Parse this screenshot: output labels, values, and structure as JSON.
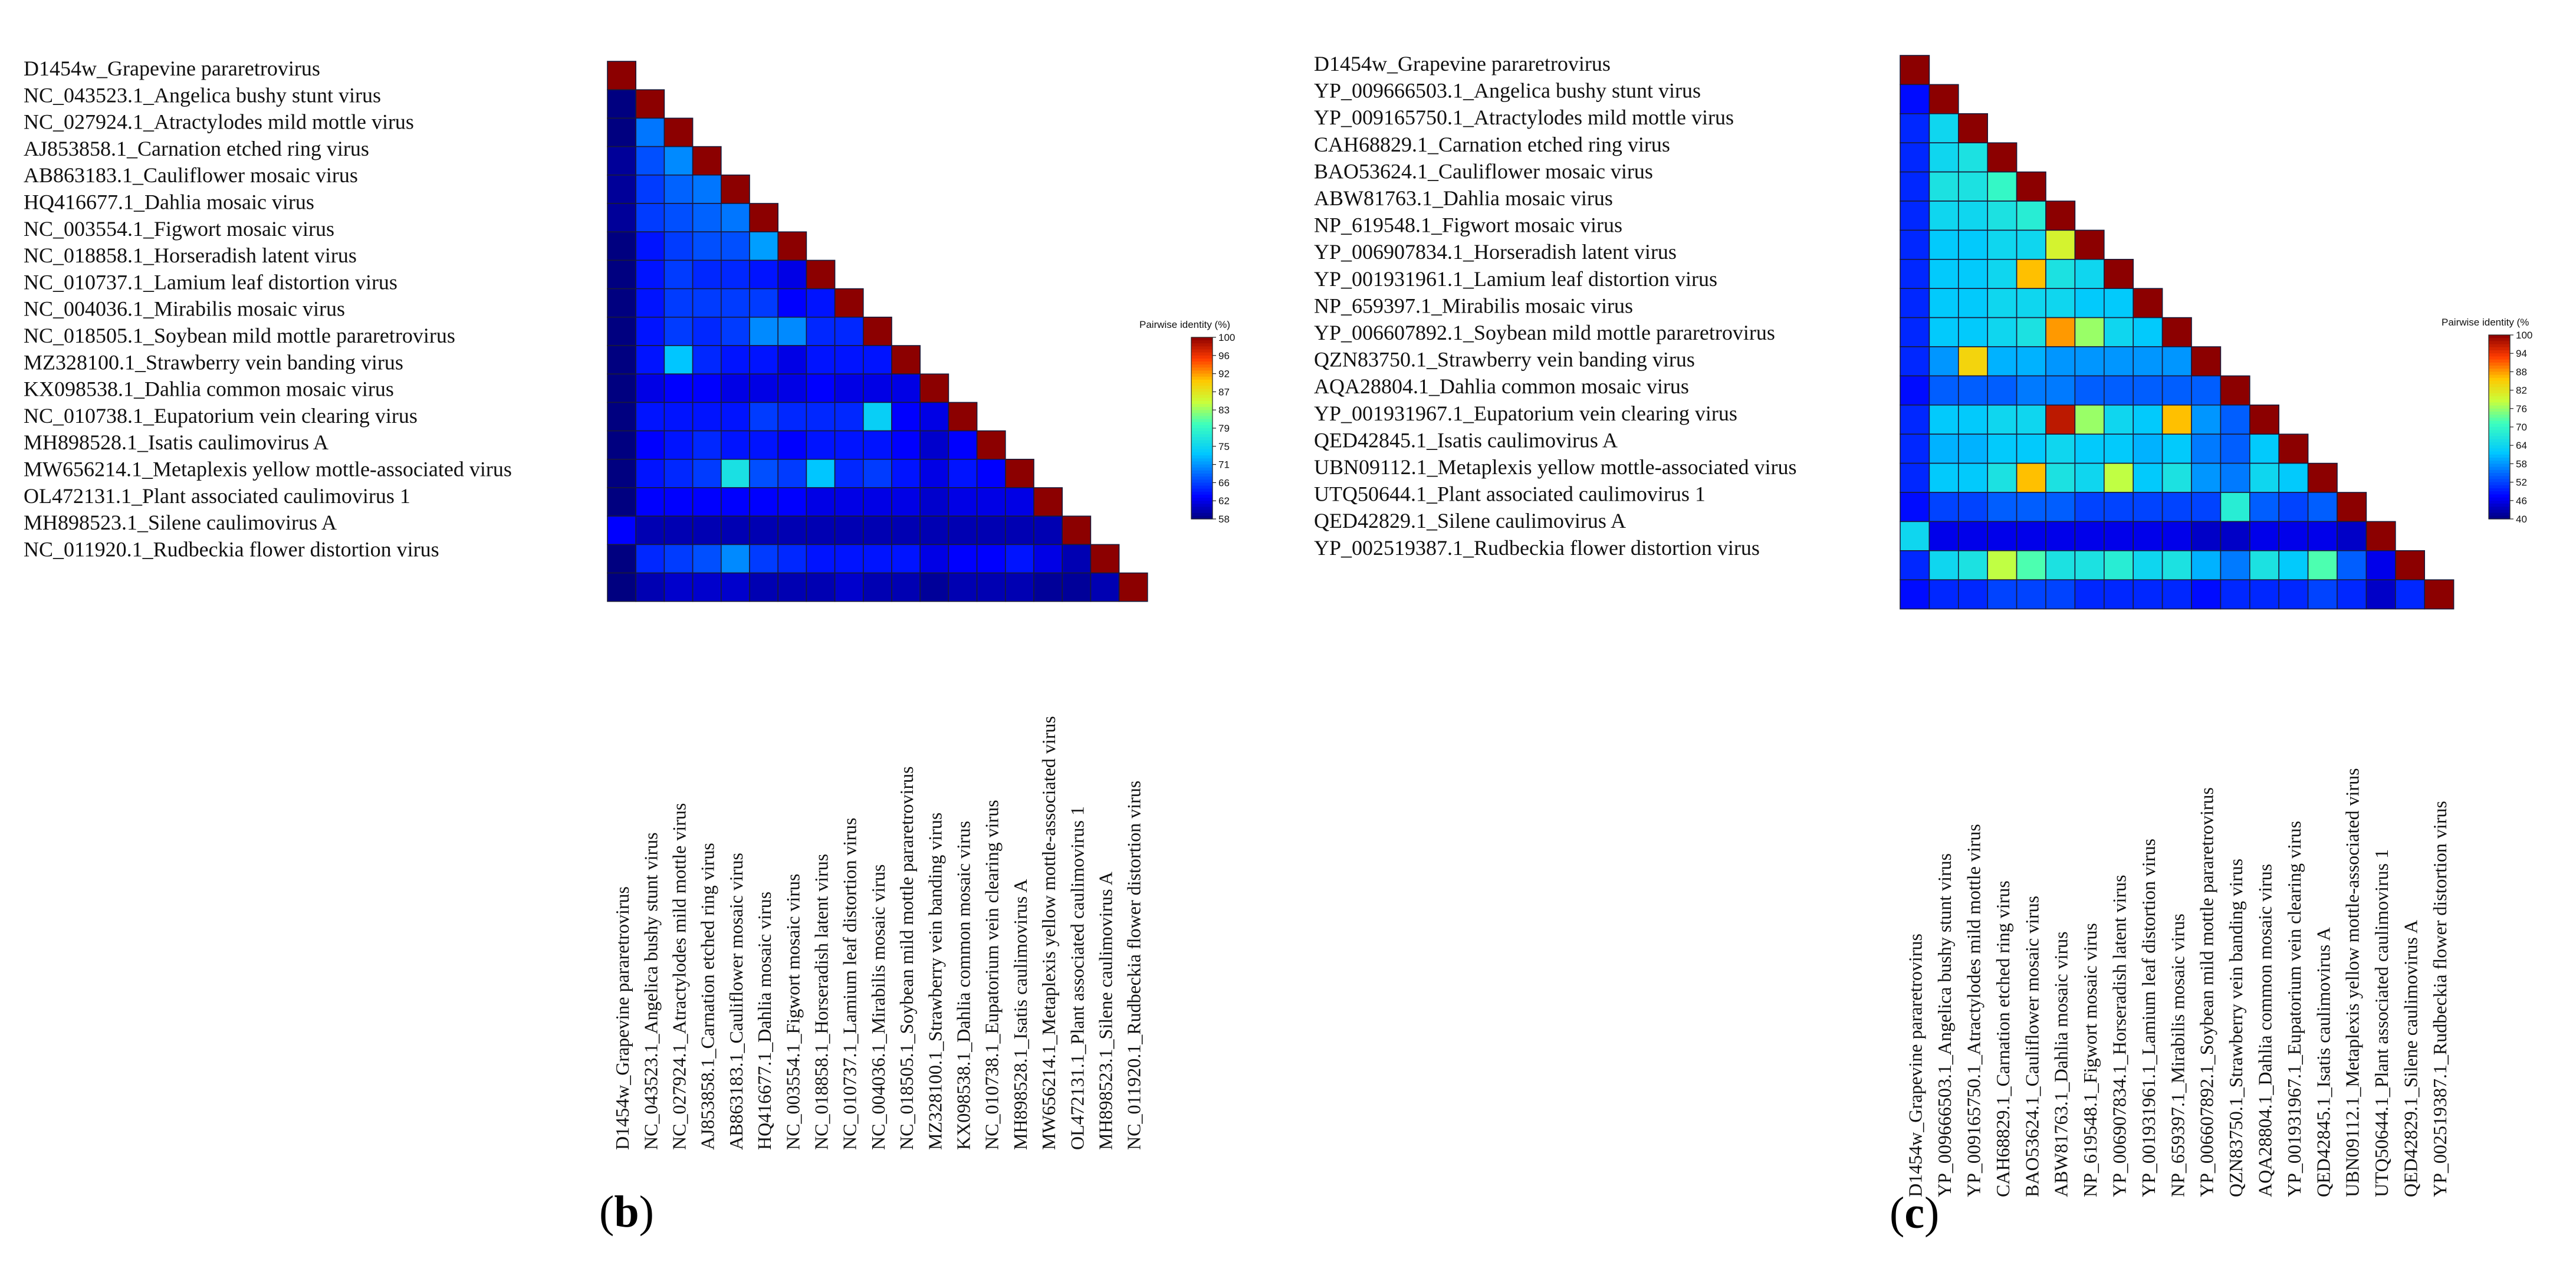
{
  "chart_data": [
    {
      "type": "heatmap",
      "panel_label": {
        "open": "(",
        "letter": "b",
        "close": ")"
      },
      "legend": {
        "title": "Pairwise identity (%)",
        "ticks": [
          100,
          96,
          92,
          87,
          83,
          79,
          75,
          71,
          66,
          62,
          58
        ]
      },
      "value_range": [
        58,
        100
      ],
      "row_labels": [
        "D1454w_Grapevine pararetrovirus",
        "NC_043523.1_Angelica bushy stunt virus",
        "NC_027924.1_Atractylodes mild mottle virus",
        "AJ853858.1_Carnation etched ring virus",
        "AB863183.1_Cauliflower mosaic virus",
        "HQ416677.1_Dahlia mosaic virus",
        "NC_003554.1_Figwort mosaic virus",
        "NC_018858.1_Horseradish latent virus",
        "NC_010737.1_Lamium leaf distortion virus",
        "NC_004036.1_Mirabilis mosaic virus",
        "NC_018505.1_Soybean mild mottle pararetrovirus",
        "MZ328100.1_Strawberry vein banding virus",
        "KX098538.1_Dahlia common mosaic virus",
        "NC_010738.1_Eupatorium vein clearing virus",
        "MH898528.1_Isatis caulimovirus A",
        "MW656214.1_Metaplexis yellow  mottle-associated virus",
        "OL472131.1_Plant associated caulimovirus 1",
        "MH898523.1_Silene caulimovirus A",
        "NC_011920.1_Rudbeckia flower distortion virus"
      ],
      "col_labels": [
        "D1454w_Grapevine pararetrovirus",
        "NC_043523.1_Angelica bushy stunt virus",
        "NC_027924.1_Atractylodes mild mottle virus",
        "AJ853858.1_Carnation etched ring virus",
        "AB863183.1_Cauliflower mosaic virus",
        "HQ416677.1_Dahlia mosaic virus",
        "NC_003554.1_Figwort mosaic virus",
        "NC_018858.1_Horseradish latent virus",
        "NC_010737.1_Lamium leaf distortion virus",
        "NC_004036.1_Mirabilis mosaic virus",
        "NC_018505.1_Soybean mild mottle pararetrovirus",
        "MZ328100.1_Strawberry vein banding virus",
        "KX098538.1_Dahlia common mosaic virus",
        "NC_010738.1_Eupatorium vein clearing virus",
        "MH898528.1_Isatis caulimovirus A",
        "MW656214.1_Metaplexis yellow  mottle-associated virus",
        "OL472131.1_Plant associated caulimovirus 1",
        "MH898523.1_Silene caulimovirus A",
        "NC_011920.1_Rudbeckia flower distortion virus"
      ],
      "values": [
        [
          100
        ],
        [
          58,
          100
        ],
        [
          58,
          69,
          100
        ],
        [
          59,
          67,
          70,
          100
        ],
        [
          59,
          66,
          68,
          69,
          100
        ],
        [
          59,
          66,
          67,
          68,
          69,
          100
        ],
        [
          58,
          64,
          66,
          67,
          67,
          71,
          100
        ],
        [
          58,
          64,
          66,
          65,
          65,
          64,
          62,
          100
        ],
        [
          58,
          64,
          66,
          66,
          66,
          66,
          63,
          64,
          100
        ],
        [
          58,
          64,
          66,
          65,
          66,
          70,
          70,
          65,
          65,
          100
        ],
        [
          58,
          64,
          73,
          65,
          64,
          64,
          62,
          64,
          64,
          64,
          100
        ],
        [
          58,
          62,
          63,
          63,
          62,
          62,
          62,
          63,
          62,
          62,
          62,
          100
        ],
        [
          58,
          64,
          64,
          64,
          64,
          66,
          65,
          65,
          65,
          74,
          63,
          62,
          100
        ],
        [
          58,
          63,
          64,
          65,
          64,
          64,
          63,
          64,
          64,
          64,
          63,
          61,
          63,
          100
        ],
        [
          58,
          64,
          65,
          66,
          76,
          67,
          66,
          73,
          65,
          66,
          64,
          62,
          64,
          63,
          100
        ],
        [
          58,
          63,
          63,
          63,
          63,
          63,
          63,
          62,
          62,
          62,
          62,
          61,
          62,
          62,
          62,
          100
        ],
        [
          63,
          60,
          60,
          60,
          60,
          60,
          60,
          60,
          60,
          60,
          60,
          60,
          60,
          60,
          60,
          60,
          100
        ],
        [
          58,
          65,
          66,
          67,
          70,
          66,
          65,
          64,
          64,
          64,
          64,
          62,
          63,
          63,
          64,
          62,
          60,
          100
        ],
        [
          58,
          60,
          61,
          61,
          61,
          60,
          60,
          60,
          61,
          60,
          60,
          59,
          60,
          60,
          60,
          59,
          59,
          60,
          100
        ]
      ]
    },
    {
      "type": "heatmap",
      "panel_label": {
        "open": "(",
        "letter": "c",
        "close": ")"
      },
      "legend": {
        "title": "Pairwise identity (%",
        "ticks": [
          100,
          94,
          88,
          82,
          76,
          70,
          64,
          58,
          52,
          46,
          40
        ]
      },
      "value_range": [
        40,
        100
      ],
      "row_labels": [
        "D1454w_Grapevine pararetrovirus",
        "YP_009666503.1_Angelica bushy stunt virus",
        "YP_009165750.1_Atractylodes mild mottle virus",
        "CAH68829.1_Carnation etched ring virus",
        "BAO53624.1_Cauliflower mosaic virus",
        "ABW81763.1_Dahlia mosaic virus",
        "NP_619548.1_Figwort mosaic virus",
        "YP_006907834.1_Horseradish latent virus",
        "YP_001931961.1_Lamium leaf distortion virus",
        "NP_659397.1_Mirabilis mosaic virus",
        "YP_006607892.1_Soybean mild mottle pararetrovirus",
        "QZN83750.1_Strawberry vein banding virus",
        "AQA28804.1_Dahlia common mosaic virus",
        "YP_001931967.1_Eupatorium vein clearing virus",
        "QED42845.1_Isatis caulimovirus A",
        "UBN09112.1_Metaplexis yellow  mottle-associated virus",
        "UTQ50644.1_Plant associated caulimovirus 1",
        "QED42829.1_Silene caulimovirus A",
        "YP_002519387.1_Rudbeckia flower distortion virus"
      ],
      "col_labels": [
        "D1454w_Grapevine pararetrovirus",
        "YP_009666503.1_Angelica bushy stunt virus",
        "YP_009165750.1_Atractylodes mild mottle virus",
        "CAH68829.1_Carnation etched ring virus",
        "BAO53624.1_Cauliflower mosaic virus",
        "ABW81763.1_Dahlia mosaic virus",
        "NP_619548.1_Figwort mosaic virus",
        "YP_006907834.1_Horseradish latent virus",
        "YP_001931961.1_Lamium leaf distortion virus",
        "NP_659397.1_Mirabilis mosaic virus",
        "YP_006607892.1_Soybean mild mottle pararetrovirus",
        "QZN83750.1_Strawberry vein banding virus",
        "AQA28804.1_Dahlia common mosaic virus",
        "YP_001931967.1_Eupatorium vein clearing virus",
        "QED42845.1_Isatis caulimovirus A",
        "UBN09112.1_Metaplexis yellow  mottle-associated virus",
        "UTQ50644.1_Plant associated caulimovirus 1",
        "QED42829.1_Silene caulimovirus A",
        "YP_002519387.1_Rudbeckia flower distortion virus"
      ],
      "values": [
        [
          100
        ],
        [
          48,
          100
        ],
        [
          50,
          64,
          100
        ],
        [
          50,
          64,
          66,
          100
        ],
        [
          50,
          66,
          66,
          70,
          100
        ],
        [
          50,
          64,
          64,
          66,
          68,
          100
        ],
        [
          50,
          62,
          62,
          64,
          64,
          80,
          100
        ],
        [
          50,
          62,
          62,
          64,
          86,
          66,
          64,
          100
        ],
        [
          50,
          62,
          62,
          64,
          64,
          64,
          62,
          62,
          100
        ],
        [
          50,
          62,
          62,
          64,
          66,
          88,
          76,
          64,
          62,
          100
        ],
        [
          50,
          58,
          84,
          60,
          60,
          58,
          58,
          58,
          58,
          58,
          100
        ],
        [
          48,
          54,
          54,
          54,
          56,
          56,
          54,
          54,
          54,
          54,
          54,
          100
        ],
        [
          50,
          62,
          62,
          64,
          64,
          97,
          76,
          64,
          62,
          86,
          58,
          54,
          100
        ],
        [
          50,
          60,
          60,
          62,
          62,
          64,
          62,
          62,
          60,
          62,
          56,
          54,
          62,
          100
        ],
        [
          50,
          62,
          62,
          66,
          86,
          66,
          64,
          78,
          62,
          66,
          58,
          56,
          64,
          62,
          100
        ],
        [
          48,
          52,
          52,
          54,
          54,
          54,
          52,
          52,
          52,
          52,
          52,
          68,
          54,
          52,
          54,
          100
        ],
        [
          64,
          46,
          46,
          46,
          46,
          46,
          46,
          46,
          46,
          46,
          44,
          44,
          46,
          46,
          46,
          44,
          100
        ],
        [
          50,
          64,
          66,
          78,
          72,
          66,
          66,
          68,
          64,
          66,
          60,
          56,
          66,
          62,
          72,
          54,
          46,
          100
        ],
        [
          48,
          50,
          50,
          52,
          52,
          52,
          50,
          50,
          50,
          50,
          48,
          50,
          50,
          50,
          52,
          50,
          44,
          50,
          100
        ]
      ]
    }
  ]
}
